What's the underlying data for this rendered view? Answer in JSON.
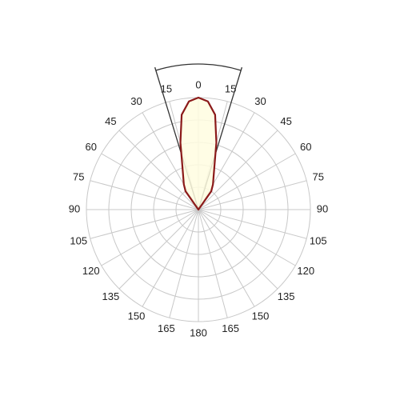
{
  "chart_data": {
    "type": "polar",
    "theta": [
      -40,
      -35,
      -30,
      -25,
      -20,
      -15,
      -10,
      -5,
      0,
      5,
      10,
      15,
      20,
      25,
      30,
      35,
      40
    ],
    "values": [
      0,
      20,
      26,
      32,
      42,
      62,
      86,
      97,
      100,
      97,
      86,
      62,
      42,
      32,
      26,
      20,
      0
    ],
    "color": "#8b1a1a",
    "fill": "#fffde0",
    "rlim": [
      0,
      100
    ],
    "rticks": [
      20,
      40,
      60,
      80,
      100
    ],
    "thetaticks": [
      0,
      15,
      30,
      45,
      60,
      75,
      90,
      105,
      120,
      135,
      150,
      165,
      180,
      {
        "value": -165,
        "label": "165"
      },
      {
        "value": -150,
        "label": "150"
      },
      {
        "value": -135,
        "label": "135"
      },
      {
        "value": -120,
        "label": "120"
      },
      {
        "value": -105,
        "label": "105"
      },
      {
        "value": -90,
        "label": "90"
      },
      {
        "value": -75,
        "label": "75"
      },
      {
        "value": -60,
        "label": "60"
      },
      {
        "value": -45,
        "label": "45"
      },
      {
        "value": -30,
        "label": "30"
      },
      {
        "value": -15,
        "label": "15"
      }
    ],
    "beam_half_angle": 17,
    "grid": true
  }
}
